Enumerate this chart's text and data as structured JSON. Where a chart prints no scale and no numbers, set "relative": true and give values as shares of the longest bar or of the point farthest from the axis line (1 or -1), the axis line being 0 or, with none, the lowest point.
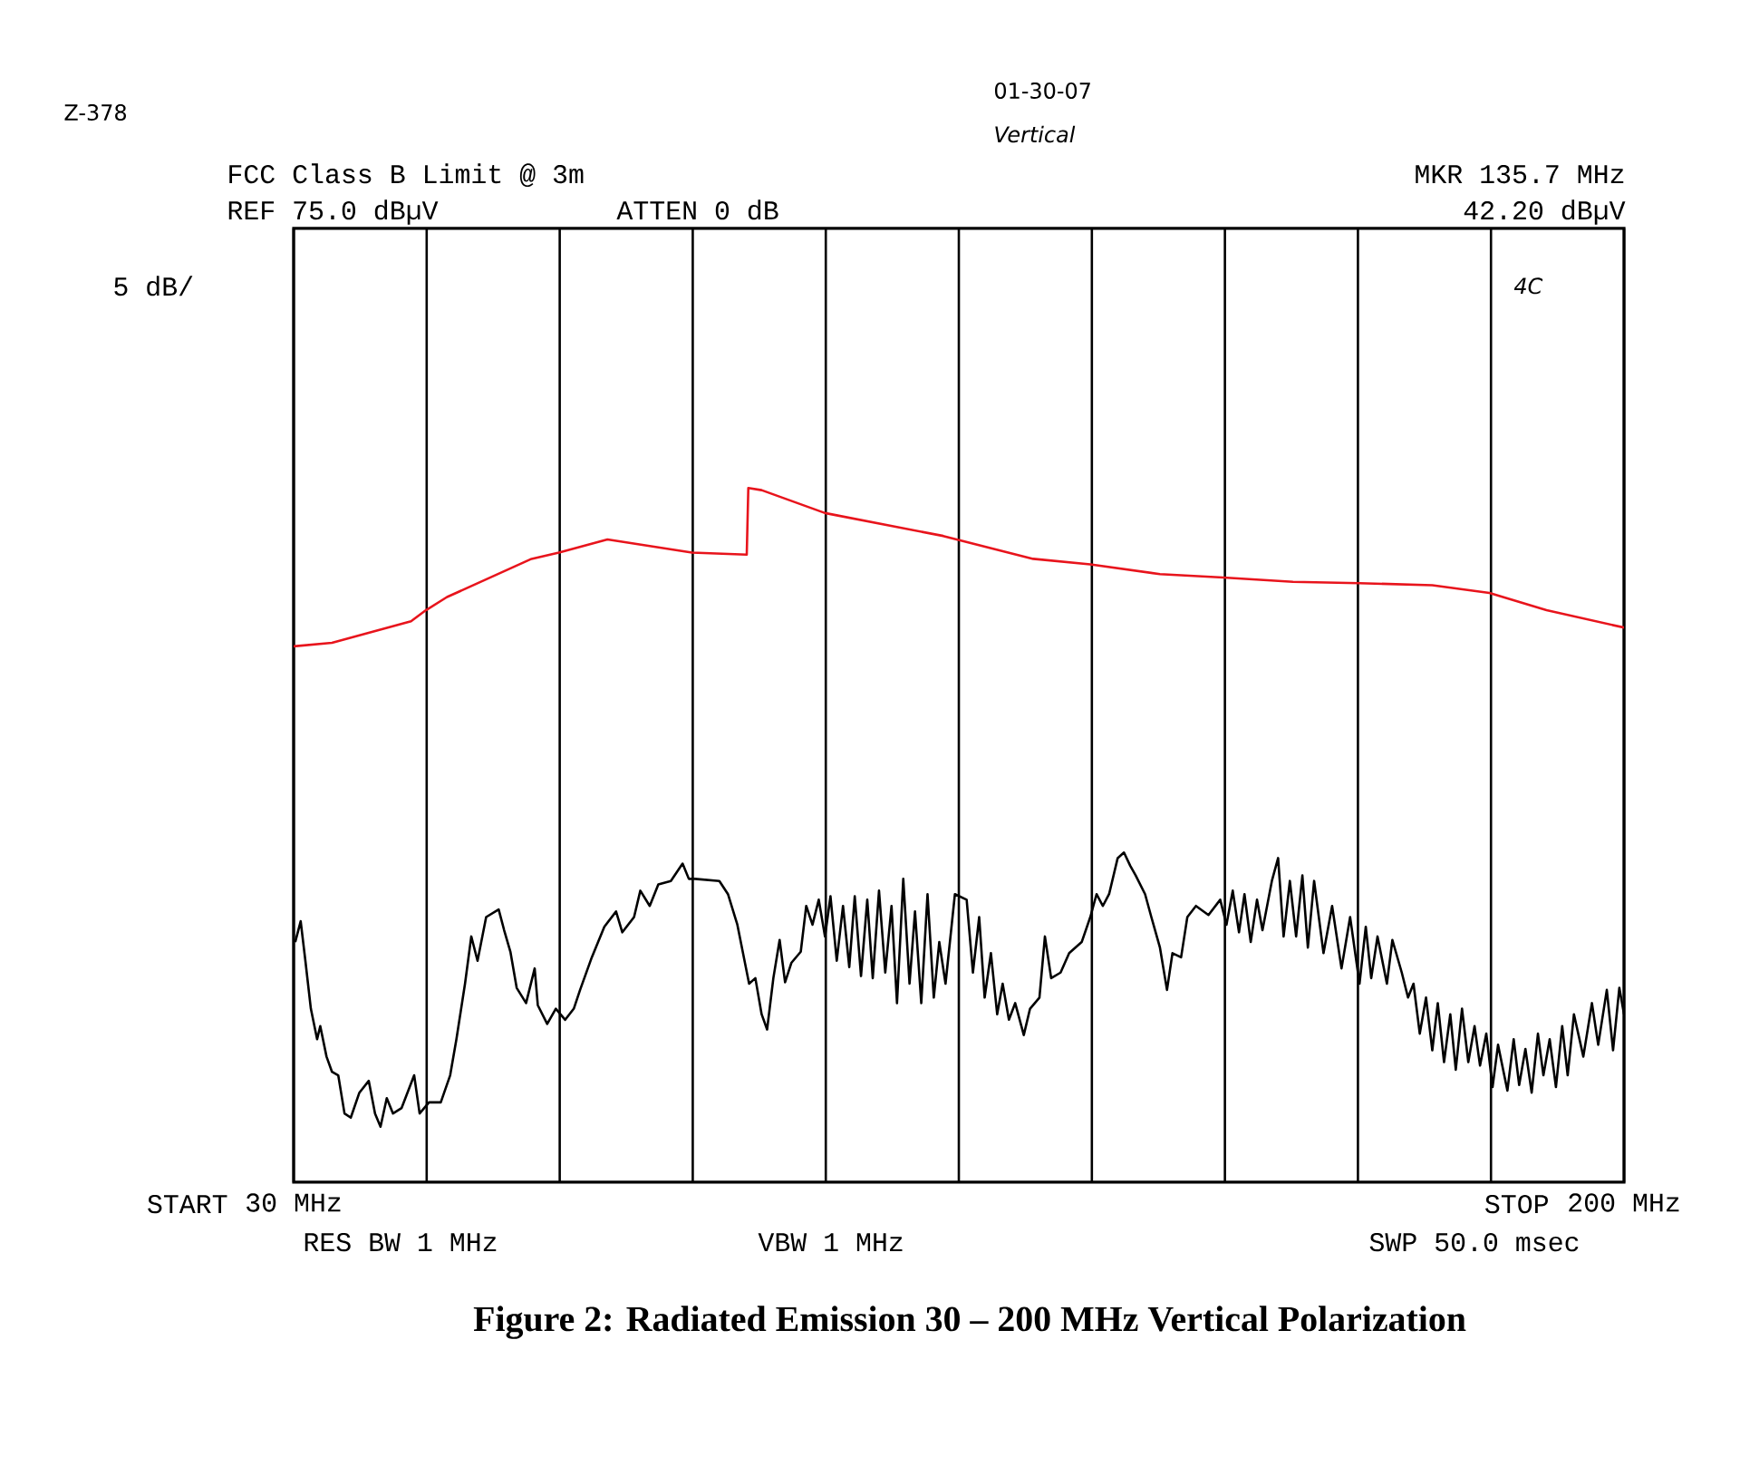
{
  "chart_data": {
    "type": "line",
    "title": "Figure 2:  Radiated Emission 30 – 200 MHz Vertical Polarization",
    "annotations": [
      "Z-378",
      "01-30-07",
      "Vertical",
      "FCC Class B Limit @ 3m",
      "REF 75.0 dBµV",
      "ATTEN 0 dB",
      "MKR 135.7 MHz",
      "42.20 dBµV",
      "5 dB/",
      "4C",
      "RES BW 1 MHz",
      "VBW 1 MHz",
      "SWP 50.0 msec",
      "START",
      "STOP"
    ],
    "xlim": [
      30,
      200
    ],
    "xticks": [
      {
        "value": 30,
        "label": "30 MHz"
      },
      {
        "value": 47,
        "label": null
      },
      {
        "value": 64,
        "label": null
      },
      {
        "value": 81,
        "label": null
      },
      {
        "value": 98,
        "label": null
      },
      {
        "value": 115,
        "label": null
      },
      {
        "value": 132,
        "label": null
      },
      {
        "value": 149,
        "label": null
      },
      {
        "value": 166,
        "label": null
      },
      {
        "value": 183,
        "label": null
      },
      {
        "value": 200,
        "label": "200 MHz"
      }
    ],
    "relative": true,
    "grid": "x",
    "tick_labels": "x",
    "series": [
      {
        "color": "#e8141c",
        "x": [
          30.0,
          34.9,
          45.0,
          46.9,
          49.6,
          60.4,
          63.9,
          70.1,
          80.9,
          87.9,
          88.1,
          89.8,
          97.9,
          113.0,
          124.5,
          131.8,
          140.7,
          148.8,
          157.7,
          166.2,
          175.5,
          182.8,
          190.1,
          200.0
        ],
        "values": [
          0.772,
          0.777,
          0.808,
          0.824,
          0.843,
          0.898,
          0.907,
          0.926,
          0.907,
          0.904,
          1.0,
          0.997,
          0.964,
          0.931,
          0.898,
          0.89,
          0.876,
          0.871,
          0.865,
          0.863,
          0.86,
          0.849,
          0.824,
          0.799
        ]
      },
      {
        "color": "#000000",
        "x": [
          30.2,
          30.9,
          31.5,
          32.2,
          33.0,
          33.4,
          34.2,
          34.9,
          35.7,
          36.5,
          37.3,
          38.4,
          39.6,
          40.4,
          41.1,
          41.9,
          42.7,
          43.8,
          45.4,
          46.1,
          47.3,
          48.8,
          50.0,
          50.8,
          51.9,
          52.7,
          53.5,
          54.6,
          56.2,
          56.9,
          57.7,
          58.5,
          59.7,
          60.8,
          61.2,
          62.4,
          63.5,
          64.7,
          65.8,
          66.6,
          68.1,
          69.7,
          71.2,
          72.0,
          73.5,
          74.3,
          75.5,
          76.6,
          78.2,
          79.7,
          80.5,
          81.3,
          84.4,
          85.5,
          86.7,
          88.2,
          89.0,
          89.8,
          90.5,
          91.3,
          92.1,
          92.8,
          93.6,
          94.8,
          95.5,
          96.3,
          97.1,
          97.9,
          98.6,
          99.4,
          100.2,
          101.0,
          101.7,
          102.5,
          103.3,
          104.0,
          104.8,
          105.6,
          106.4,
          107.1,
          107.9,
          108.7,
          109.4,
          110.2,
          111.0,
          111.8,
          112.5,
          113.3,
          114.5,
          116.0,
          116.8,
          117.6,
          118.3,
          119.1,
          119.9,
          120.6,
          121.4,
          122.2,
          123.3,
          124.1,
          125.3,
          126.0,
          126.8,
          128.0,
          129.1,
          130.7,
          131.8,
          132.6,
          133.4,
          134.2,
          135.3,
          136.1,
          136.9,
          137.6,
          138.8,
          139.6,
          140.7,
          141.6,
          142.3,
          143.4,
          144.2,
          145.3,
          146.9,
          148.4,
          149.2,
          150.0,
          150.8,
          151.5,
          152.3,
          153.1,
          153.8,
          155.0,
          155.8,
          156.5,
          157.3,
          158.1,
          158.9,
          159.6,
          160.4,
          161.6,
          162.7,
          163.9,
          165.0,
          166.2,
          167.0,
          167.7,
          168.5,
          169.7,
          170.4,
          171.6,
          172.4,
          173.1,
          173.9,
          174.7,
          175.5,
          176.2,
          177.0,
          177.8,
          178.5,
          179.3,
          180.1,
          180.9,
          181.6,
          182.4,
          183.2,
          183.9,
          185.1,
          185.9,
          186.6,
          187.4,
          188.2,
          189.0,
          189.7,
          190.5,
          191.3,
          192.1,
          192.8,
          193.6,
          194.8,
          195.9,
          196.7,
          197.8,
          198.6,
          199.4,
          200.0
        ],
        "values": [
          0.346,
          0.376,
          0.319,
          0.25,
          0.206,
          0.225,
          0.181,
          0.159,
          0.154,
          0.099,
          0.093,
          0.129,
          0.146,
          0.099,
          0.08,
          0.121,
          0.099,
          0.107,
          0.154,
          0.099,
          0.115,
          0.115,
          0.154,
          0.206,
          0.286,
          0.354,
          0.319,
          0.382,
          0.393,
          0.363,
          0.332,
          0.28,
          0.258,
          0.308,
          0.255,
          0.228,
          0.25,
          0.234,
          0.25,
          0.277,
          0.324,
          0.368,
          0.39,
          0.36,
          0.382,
          0.42,
          0.398,
          0.429,
          0.434,
          0.459,
          0.437,
          0.437,
          0.434,
          0.415,
          0.371,
          0.286,
          0.294,
          0.242,
          0.22,
          0.294,
          0.349,
          0.288,
          0.316,
          0.332,
          0.398,
          0.371,
          0.407,
          0.354,
          0.412,
          0.319,
          0.398,
          0.31,
          0.412,
          0.297,
          0.407,
          0.294,
          0.42,
          0.302,
          0.398,
          0.258,
          0.437,
          0.286,
          0.39,
          0.258,
          0.415,
          0.266,
          0.346,
          0.286,
          0.415,
          0.407,
          0.302,
          0.382,
          0.266,
          0.33,
          0.242,
          0.286,
          0.234,
          0.258,
          0.212,
          0.25,
          0.266,
          0.354,
          0.294,
          0.302,
          0.33,
          0.346,
          0.382,
          0.415,
          0.398,
          0.415,
          0.467,
          0.475,
          0.456,
          0.442,
          0.415,
          0.382,
          0.338,
          0.277,
          0.33,
          0.324,
          0.382,
          0.398,
          0.385,
          0.407,
          0.371,
          0.42,
          0.36,
          0.415,
          0.346,
          0.407,
          0.363,
          0.434,
          0.467,
          0.354,
          0.434,
          0.354,
          0.442,
          0.338,
          0.434,
          0.33,
          0.398,
          0.308,
          0.382,
          0.286,
          0.368,
          0.294,
          0.354,
          0.286,
          0.349,
          0.302,
          0.266,
          0.286,
          0.214,
          0.266,
          0.19,
          0.258,
          0.173,
          0.242,
          0.162,
          0.25,
          0.173,
          0.225,
          0.168,
          0.214,
          0.137,
          0.198,
          0.132,
          0.206,
          0.14,
          0.192,
          0.129,
          0.214,
          0.154,
          0.206,
          0.137,
          0.225,
          0.154,
          0.242,
          0.181,
          0.258,
          0.198,
          0.277,
          0.19,
          0.28,
          0.242
        ]
      }
    ]
  }
}
